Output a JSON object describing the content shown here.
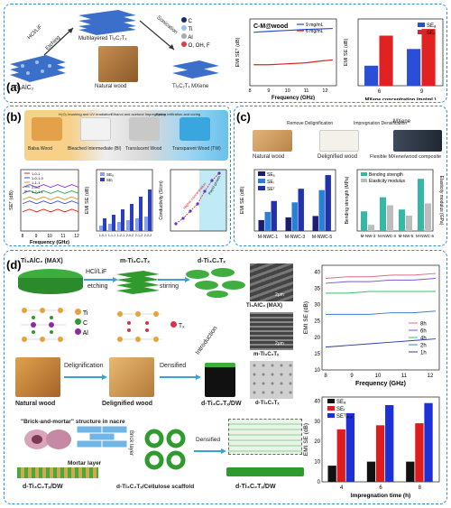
{
  "panel_a": {
    "label": "(a)",
    "hcl": "HCl/LiF",
    "etching": "Etching",
    "sonication": "Sonication",
    "multilayer": "Multilayered Ti₃C₂Tₓ",
    "max": "Ti₃AlC₂",
    "wood": "Natural wood",
    "mxene": "Ti₃C₂Tₓ MXene",
    "legend": [
      "C",
      "Ti",
      "Al",
      "O, OH, F"
    ],
    "chart1": {
      "title": "C-M@wood",
      "ylabel": "EMI SEᵀ (dB)",
      "xlabel": "Frequency (GHz)",
      "x_ticks": [
        "8",
        "9",
        "10",
        "11",
        "12"
      ],
      "series": [
        {
          "name": "9 mg/mL",
          "color": "#2a4fd6",
          "x": [
            8.2,
            9,
            10,
            11,
            12.4
          ],
          "values": [
            38,
            38.5,
            39,
            39.5,
            40
          ]
        },
        {
          "name": "6 mg/mL",
          "color": "#e02222",
          "x": [
            8.2,
            9,
            10,
            11,
            11.8,
            12.4
          ],
          "values": [
            21,
            21,
            21.5,
            22,
            23,
            23.5
          ]
        }
      ]
    },
    "chart2": {
      "type": "bar",
      "ylabel": "EMI SE (dB)",
      "xlabel": "MXene concentration (mg/mL)",
      "categories": [
        "6",
        "9"
      ],
      "series": [
        {
          "name": "SEₐ",
          "color": "#2a4fd6",
          "values": [
            6,
            11
          ]
        },
        {
          "name": "SEᵣ",
          "color": "#e02222",
          "values": [
            15,
            17
          ]
        }
      ]
    }
  },
  "panel_b": {
    "label": "(b)",
    "stages": [
      "Balsa Wood",
      "Bleached Intermediate (BI)",
      "Translucent Wood",
      "Transparent Wood (TW)"
    ],
    "steps": [
      "H₂O₂ brushing and UV irradiation",
      "Ethanol and acetone impregnation",
      "Epoxy infiltration and curing"
    ],
    "chart1": {
      "ylabel": "SEᵀ (dB)",
      "xlabel": "Frequency (GHz)",
      "x_ticks": [
        "8",
        "9",
        "10",
        "11",
        "12"
      ],
      "legend": [
        "1-0-1",
        "1-0-1-0",
        "1-1-1",
        "2-0-2",
        "1-2-1-1"
      ]
    },
    "chart2": {
      "ylabel": "EMI SE (dB)",
      "legend": [
        "SEₐ",
        "SEᵣ"
      ],
      "categories": [
        "1-0-1",
        "1-1-1",
        "1-2-1",
        "2-0-2",
        "2-1-2",
        "2-2-2"
      ]
    },
    "chart3": {
      "ylabel": "Conductivity (S/cm)",
      "note1": "Higher concentration",
      "note2": "Rapid growth"
    }
  },
  "panel_c": {
    "label": "(c)",
    "delig": "Remove Delignification",
    "impreg": "Impregnation Densification",
    "mxene": "MXene",
    "stages": [
      "Natural wood",
      "Delignified wood",
      "Flexible MXene/wood composite"
    ],
    "chart1": {
      "type": "bar",
      "ylabel": "EMI SE (dB)",
      "categories": [
        "M-NWC-1",
        "M-NWC-3",
        "M-NWC-5"
      ],
      "series": [
        {
          "name": "SEₐ",
          "color": "#1c1c70",
          "values": [
            8,
            10,
            11
          ]
        },
        {
          "name": "SEᵣ",
          "color": "#2a7fd6",
          "values": [
            14,
            21,
            30
          ]
        },
        {
          "name": "SEᵀ",
          "color": "#2233aa",
          "values": [
            22,
            31,
            41
          ]
        }
      ]
    },
    "chart2": {
      "type": "bar",
      "ylabel": "Bending strength (MPa)",
      "ylabel2": "Elasticity modulus (GPa)",
      "categories": [
        "M-NW-3",
        "M-NWC-3",
        "M-NW-5",
        "M-NWC-5"
      ],
      "legend": [
        "Bending strength",
        "Elasticity modulus"
      ]
    }
  },
  "panel_d": {
    "label": "(d)",
    "max": "Ti₃AlC₂ (MAX)",
    "hcl": "HCl/LiF",
    "etching": "etching",
    "stirring": "stirring",
    "m_mx": "m-Ti₃C₂Tₓ",
    "d_mx": "d-Ti₃C₂Tₓ",
    "atoms": [
      "Ti",
      "C",
      "Al",
      "Tₓ"
    ],
    "introduction": "Introduction",
    "delig": "Delignification",
    "densified": "Densified",
    "natural": "Natural wood",
    "delig_wood": "Delignified wood",
    "dw": "d-Ti₃C₂Tₓ/DW",
    "sem_max": "Ti₃AlC₂ (MAX)",
    "sem_m": "m-Ti₃C₂Tₓ",
    "sem_d": "d-Ti₃C₂Tₓ",
    "scale": "2μm",
    "nacre_title": "\"Brick-and-mortar\" structure in nacre",
    "brick": "Brick layer",
    "mortar": "Mortar layer",
    "scaffold": "d-Ti₃C₂Tₓ/Cellulose scaffold",
    "densified2": "Densified",
    "dw2": "d-Ti₃C₂Tₓ/DW",
    "dw3": "d-Ti₃C₂Tₓ/DW",
    "chart1": {
      "ylabel": "EMI SE (dB)",
      "xlabel": "Frequency (GHz)",
      "x_ticks": [
        "8",
        "9",
        "10",
        "11",
        "12"
      ],
      "y_ticks": [
        "10",
        "15",
        "20",
        "25",
        "30",
        "35",
        "40"
      ],
      "series": [
        {
          "name": "8h",
          "color": "#e06a8a",
          "values": [
            38,
            38.5,
            38.5,
            39,
            39,
            39.5
          ]
        },
        {
          "name": "6h",
          "color": "#7a5ad0",
          "values": [
            36.5,
            37,
            37,
            37.5,
            37.5,
            38
          ]
        },
        {
          "name": "4h",
          "color": "#3fbf6a",
          "values": [
            33.5,
            33.5,
            34,
            34,
            34,
            34
          ]
        },
        {
          "name": "2h",
          "color": "#3a7fd0",
          "values": [
            27,
            27,
            27,
            27.5,
            27.5,
            28
          ]
        },
        {
          "name": "1h",
          "color": "#2a3faa",
          "values": [
            17,
            17.5,
            18,
            18.5,
            19,
            19.5
          ]
        }
      ]
    },
    "chart2": {
      "type": "bar",
      "ylabel": "EMI SE (dB)",
      "xlabel": "Impregnation time (h)",
      "categories": [
        "4",
        "6",
        "8"
      ],
      "y_ticks": [
        "0",
        "10",
        "20",
        "30",
        "40"
      ],
      "series": [
        {
          "name": "SEₐ",
          "color": "#111111",
          "values": [
            8,
            10,
            10
          ]
        },
        {
          "name": "SEᵣ",
          "color": "#e01b1b",
          "values": [
            26,
            28,
            29
          ]
        },
        {
          "name": "SEᵀₒₜₐₗ",
          "color": "#1d2fd6",
          "values": [
            34,
            38,
            39
          ]
        }
      ]
    }
  }
}
